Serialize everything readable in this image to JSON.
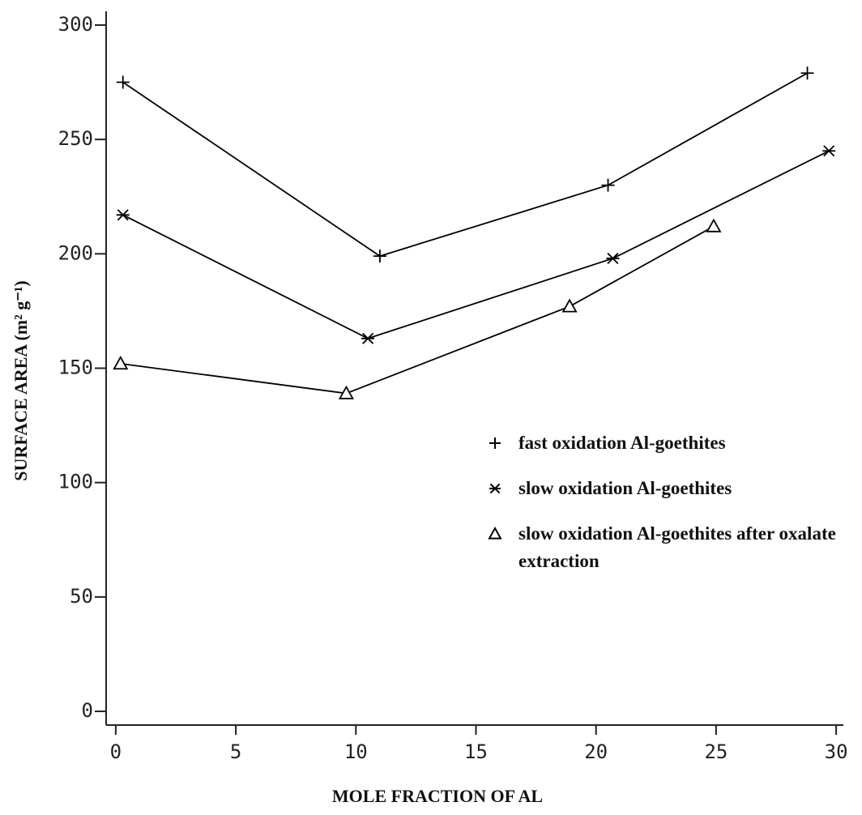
{
  "chart_data": {
    "type": "line",
    "xlabel": "MOLE FRACTION OF AL",
    "ylabel": "SURFACE AREA (m² g⁻¹)",
    "xlim": [
      -0.4,
      30.3
    ],
    "ylim": [
      -6,
      306
    ],
    "xticks": [
      0,
      5,
      10,
      15,
      20,
      25,
      30
    ],
    "yticks": [
      0,
      50,
      100,
      150,
      200,
      250,
      300
    ],
    "series": [
      {
        "name": "fast oxidation Al-goethites",
        "marker": "plus",
        "color": "#000000",
        "x": [
          0.3,
          11,
          20.5,
          28.8
        ],
        "values": [
          275,
          199,
          230,
          279
        ]
      },
      {
        "name": "slow oxidation Al-goethites",
        "marker": "star",
        "color": "#000000",
        "x": [
          0.3,
          10.5,
          20.7,
          29.7
        ],
        "values": [
          217,
          163,
          198,
          245
        ]
      },
      {
        "name": "slow oxidation Al-goethites after oxalate extraction",
        "marker": "triangle",
        "color": "#000000",
        "x": [
          0.2,
          9.6,
          18.9,
          24.9
        ],
        "values": [
          152,
          139,
          177,
          212
        ]
      }
    ]
  }
}
